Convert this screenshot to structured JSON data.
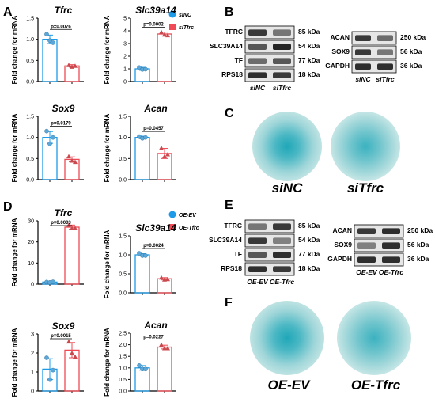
{
  "panel_letters": [
    "A",
    "B",
    "C",
    "D",
    "E",
    "F"
  ],
  "legend_a": [
    {
      "name": "siNC",
      "color": "#1e9be8"
    },
    {
      "name": "siTfrc",
      "color": "#ef4a55"
    }
  ],
  "legend_d": [
    {
      "name": "OE-EV",
      "color": "#1e9be8"
    },
    {
      "name": "OE-Tfrc",
      "color": "#ef4a55"
    }
  ],
  "chart_data": [
    {
      "type": "bar",
      "panel": "A",
      "title": "Tfrc",
      "ylabel": "Fold change for mRNA",
      "ylim": [
        0,
        1.5
      ],
      "yticks": [
        "0.0",
        "0.5",
        "1.0",
        "1.5"
      ],
      "pvalue": "p=0.0076",
      "series": [
        {
          "name": "siNC",
          "values": [
            1.0
          ],
          "points": [
            1.12,
            0.97,
            0.92
          ],
          "sd": 0.1
        },
        {
          "name": "siTfrc",
          "values": [
            0.37
          ],
          "points": [
            0.39,
            0.35,
            0.37
          ],
          "sd": 0.03
        }
      ]
    },
    {
      "type": "bar",
      "panel": "A",
      "title": "Slc39a14",
      "ylabel": "Fold change for mRNA",
      "ylim": [
        0,
        5
      ],
      "yticks": [
        "0",
        "1",
        "2",
        "3",
        "4",
        "5"
      ],
      "pvalue": "p=0.0002",
      "series": [
        {
          "name": "siNC",
          "values": [
            1.0
          ],
          "points": [
            1.1,
            0.95,
            0.97
          ],
          "sd": 0.12
        },
        {
          "name": "siTfrc",
          "values": [
            3.75
          ],
          "points": [
            3.9,
            3.7,
            3.65
          ],
          "sd": 0.15
        }
      ]
    },
    {
      "type": "bar",
      "panel": "A",
      "title": "Sox9",
      "ylabel": "Fold change for mRNA",
      "ylim": [
        0,
        1.5
      ],
      "yticks": [
        "0.0",
        "0.5",
        "1.0",
        "1.5"
      ],
      "pvalue": "p=0.0179",
      "series": [
        {
          "name": "siNC",
          "values": [
            1.0
          ],
          "points": [
            1.15,
            0.85,
            1.0
          ],
          "sd": 0.14
        },
        {
          "name": "siTfrc",
          "values": [
            0.48
          ],
          "points": [
            0.55,
            0.45,
            0.42
          ],
          "sd": 0.06
        }
      ]
    },
    {
      "type": "bar",
      "panel": "A",
      "title": "Acan",
      "ylabel": "Fold change for mRNA",
      "ylim": [
        0,
        1.5
      ],
      "yticks": [
        "0.0",
        "0.5",
        "1.0",
        "1.5"
      ],
      "pvalue": "p=0.0457",
      "series": [
        {
          "name": "siNC",
          "values": [
            1.0
          ],
          "points": [
            1.02,
            0.98,
            1.0
          ],
          "sd": 0.03
        },
        {
          "name": "siTfrc",
          "values": [
            0.62
          ],
          "points": [
            0.75,
            0.55,
            0.6
          ],
          "sd": 0.12
        }
      ]
    },
    {
      "type": "bar",
      "panel": "D",
      "title": "Tfrc",
      "ylabel": "Fold change for mRNA",
      "ylim": [
        0,
        30
      ],
      "yticks": [
        "0",
        "10",
        "20",
        "30"
      ],
      "pvalue": "p=0.0003",
      "series": [
        {
          "name": "OE-EV",
          "values": [
            1.0
          ],
          "points": [
            1.0,
            0.8,
            1.1
          ],
          "sd": 0.3
        },
        {
          "name": "OE-Tfrc",
          "values": [
            27.0
          ],
          "points": [
            28.0,
            26.5,
            26.5
          ],
          "sd": 1.0
        }
      ]
    },
    {
      "type": "bar",
      "panel": "D",
      "title": "Slc39a14",
      "ylabel": "Fold change for mRNA",
      "ylim": [
        0,
        1.5
      ],
      "yticks": [
        "0.0",
        "0.5",
        "1.0",
        "1.5"
      ],
      "pvalue": "p=0.0024",
      "series": [
        {
          "name": "OE-EV",
          "values": [
            1.0
          ],
          "points": [
            1.04,
            0.98,
            0.98
          ],
          "sd": 0.03
        },
        {
          "name": "OE-Tfrc",
          "values": [
            0.37
          ],
          "points": [
            0.4,
            0.35,
            0.36
          ],
          "sd": 0.03
        }
      ]
    },
    {
      "type": "bar",
      "panel": "D",
      "title": "Sox9",
      "ylabel": "Fold change for mRNA",
      "ylim": [
        0,
        3
      ],
      "yticks": [
        "0",
        "1",
        "2",
        "3"
      ],
      "pvalue": "p=0.0015",
      "series": [
        {
          "name": "OE-EV",
          "values": [
            1.15
          ],
          "points": [
            1.75,
            0.6,
            1.1
          ],
          "sd": 0.55
        },
        {
          "name": "OE-Tfrc",
          "values": [
            2.15
          ],
          "points": [
            2.6,
            2.0,
            1.8
          ],
          "sd": 0.4
        }
      ]
    },
    {
      "type": "bar",
      "panel": "D",
      "title": "Acan",
      "ylabel": "Fold change for mRNA",
      "ylim": [
        0,
        2.5
      ],
      "yticks": [
        "0.0",
        "0.5",
        "1.0",
        "1.5",
        "2.0",
        "2.5"
      ],
      "pvalue": "p=0.0227",
      "series": [
        {
          "name": "OE-EV",
          "values": [
            1.0
          ],
          "points": [
            1.1,
            0.95,
            0.95
          ],
          "sd": 0.1
        },
        {
          "name": "OE-Tfrc",
          "values": [
            1.9
          ],
          "points": [
            2.0,
            1.85,
            1.85
          ],
          "sd": 0.08
        }
      ]
    }
  ],
  "blots_b": {
    "left": [
      "TFRC",
      "SLC39A14",
      "TF",
      "RPS18"
    ],
    "left_kda": [
      "85 kDa",
      "54 kDa",
      "77 kDa",
      "18 kDa"
    ],
    "right": [
      "ACAN",
      "SOX9",
      "GAPDH"
    ],
    "right_kda": [
      "250 kDa",
      "56 kDa",
      "36 kDa"
    ],
    "lanes": [
      "siNC",
      "siTfrc"
    ]
  },
  "blots_e": {
    "left": [
      "TFRC",
      "SLC39A14",
      "TF",
      "RPS18"
    ],
    "left_kda": [
      "85 kDa",
      "54 kDa",
      "77 kDa",
      "18 kDa"
    ],
    "right": [
      "ACAN",
      "SOX9",
      "GAPDH"
    ],
    "right_kda": [
      "250 kDa",
      "56 kDa",
      "36 kDa"
    ],
    "lanes": [
      "OE-EV",
      "OE-Tfrc"
    ]
  },
  "stain_c": [
    "siNC",
    "siTfrc"
  ],
  "stain_f": [
    "OE-EV",
    "OE-Tfrc"
  ]
}
